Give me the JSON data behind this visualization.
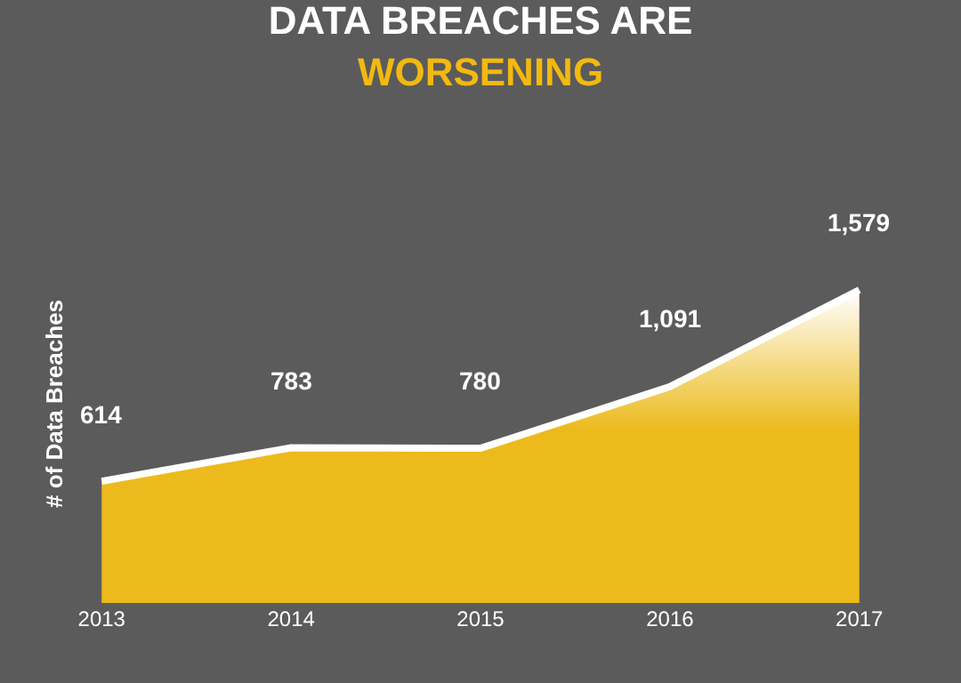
{
  "chart_data": {
    "type": "area",
    "title": "DATA BREACHES ARE",
    "subtitle": "WORSENING",
    "ylabel": "# of Data Breaches",
    "categories": [
      "2013",
      "2014",
      "2015",
      "2016",
      "2017"
    ],
    "series": [
      {
        "color": "#ecba1c",
        "values": [
          614,
          783,
          780,
          1091,
          1579
        ],
        "value_labels": [
          "614",
          "783",
          "780",
          "1,091",
          "1,579"
        ]
      }
    ],
    "tick_labels": "x",
    "grid": false,
    "legend": false
  }
}
